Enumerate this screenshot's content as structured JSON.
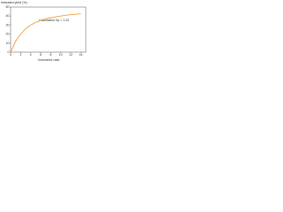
{
  "chart_data": {
    "type": "line",
    "y_label": "Indicated yield (%)",
    "x_label": "Volumetric ratio",
    "annotation": "Calculation Vp = 1.22",
    "x": [
      0,
      1,
      2,
      3,
      4,
      5,
      6,
      7,
      8,
      9,
      10,
      11,
      12,
      13,
      14
    ],
    "series": [
      {
        "name": "Indicated yield",
        "color": "#f0a040",
        "values": [
          0,
          12,
          20,
          26,
          30,
          33,
          35,
          37,
          38,
          39,
          40,
          41,
          41.5,
          42,
          42.5
        ]
      }
    ],
    "xlim": [
      0,
      15
    ],
    "xticks": [
      0,
      2,
      4,
      6,
      8,
      10,
      12,
      14
    ],
    "ylim": [
      0,
      50
    ],
    "yticks": [
      0,
      10,
      20,
      30,
      40,
      50
    ],
    "grid": false
  }
}
